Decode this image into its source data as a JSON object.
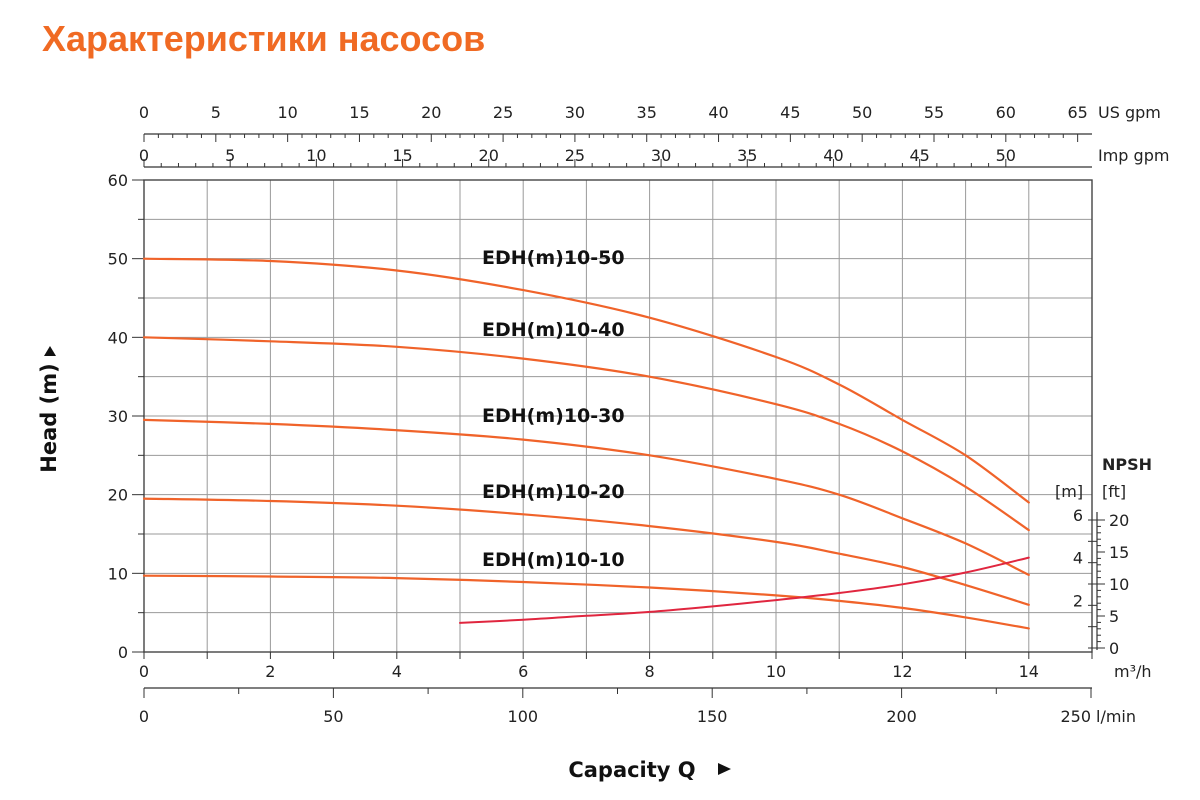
{
  "page": {
    "title": "Характеристики насосов"
  },
  "chart_data": {
    "type": "line",
    "title": "Характеристики насосов",
    "x": {
      "label": "Capacity Q",
      "unit": "m³/h",
      "range": [
        0,
        15
      ],
      "ticks": [
        0,
        2,
        4,
        6,
        8,
        10,
        12,
        14
      ]
    },
    "y": {
      "label": "Head (m)",
      "range": [
        0,
        60
      ],
      "ticks": [
        0,
        10,
        20,
        30,
        40,
        50,
        60
      ]
    },
    "secondary_x_axes": [
      {
        "unit": "US gpm",
        "tick_labels": [
          "0",
          "5",
          "10",
          "15",
          "20",
          "25",
          "30",
          "35",
          "40",
          "45",
          "50",
          "55",
          "60",
          "65"
        ],
        "max_value": 66
      },
      {
        "unit": "Imp gpm",
        "tick_labels": [
          "0",
          "5",
          "10",
          "15",
          "20",
          "25",
          "30",
          "35",
          "40",
          "45",
          "50"
        ],
        "max_value": 55
      },
      {
        "unit": "l/min",
        "tick_labels": [
          "0",
          "50",
          "100",
          "150",
          "200",
          "250"
        ],
        "max_value": 250
      }
    ],
    "npsh_axis": {
      "title": "NPSH",
      "unit_m": "[m]",
      "unit_ft": "[ft]",
      "m_ticks": [
        "2",
        "4",
        "6"
      ],
      "ft_ticks": [
        "0",
        "5",
        "10",
        "15",
        "20"
      ]
    },
    "grid": true,
    "series": [
      {
        "name": "EDH(m)10-50",
        "color": "#f0632a",
        "x": [
          0,
          2,
          4,
          6,
          8,
          10,
          11,
          12,
          13,
          14
        ],
        "y": [
          50,
          49.7,
          48.5,
          46,
          42.5,
          37.5,
          34,
          29.5,
          25,
          19
        ]
      },
      {
        "name": "EDH(m)10-40",
        "color": "#f0632a",
        "x": [
          0,
          2,
          4,
          6,
          8,
          10,
          11,
          12,
          13,
          14
        ],
        "y": [
          40,
          39.5,
          38.8,
          37.3,
          35,
          31.5,
          29,
          25.5,
          21,
          15.5
        ]
      },
      {
        "name": "EDH(m)10-30",
        "color": "#f0632a",
        "x": [
          0,
          2,
          4,
          6,
          8,
          10,
          11,
          12,
          13,
          14
        ],
        "y": [
          29.5,
          29,
          28.2,
          27,
          25,
          22,
          20,
          17,
          13.8,
          9.8
        ]
      },
      {
        "name": "EDH(m)10-20",
        "color": "#f0632a",
        "x": [
          0,
          2,
          4,
          6,
          8,
          10,
          11,
          12,
          13,
          14
        ],
        "y": [
          19.5,
          19.2,
          18.6,
          17.5,
          16,
          14,
          12.5,
          10.8,
          8.5,
          6
        ]
      },
      {
        "name": "EDH(m)10-10",
        "color": "#f0632a",
        "x": [
          0,
          2,
          4,
          6,
          8,
          10,
          11,
          12,
          13,
          14
        ],
        "y": [
          9.7,
          9.6,
          9.4,
          8.9,
          8.2,
          7.2,
          6.5,
          5.6,
          4.4,
          3
        ]
      },
      {
        "name": "NPSH",
        "color": "#e0263f",
        "x": [
          5,
          6,
          7,
          8,
          9,
          10,
          11,
          12,
          13,
          14
        ],
        "y": [
          3.7,
          4.1,
          4.6,
          5.1,
          5.8,
          6.6,
          7.5,
          8.6,
          10.1,
          12
        ]
      }
    ]
  }
}
